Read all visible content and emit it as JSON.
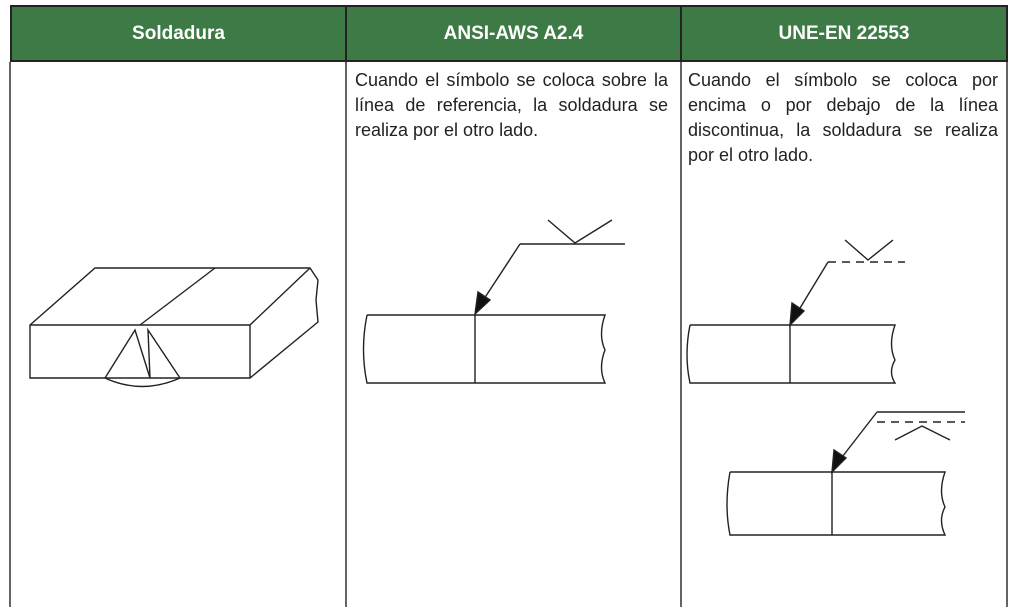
{
  "table": {
    "headers": [
      "Soldadura",
      "ANSI-AWS A2.4",
      "UNE-EN 22553"
    ],
    "cells": [
      "Cuando el símbolo se coloca sobre la línea de referencia, la soldadura se realiza por el otro lado.",
      "Cuando el símbolo se coloca por encima o por debajo de la línea discontinua, la soldadura se realiza por el otro lado."
    ]
  }
}
